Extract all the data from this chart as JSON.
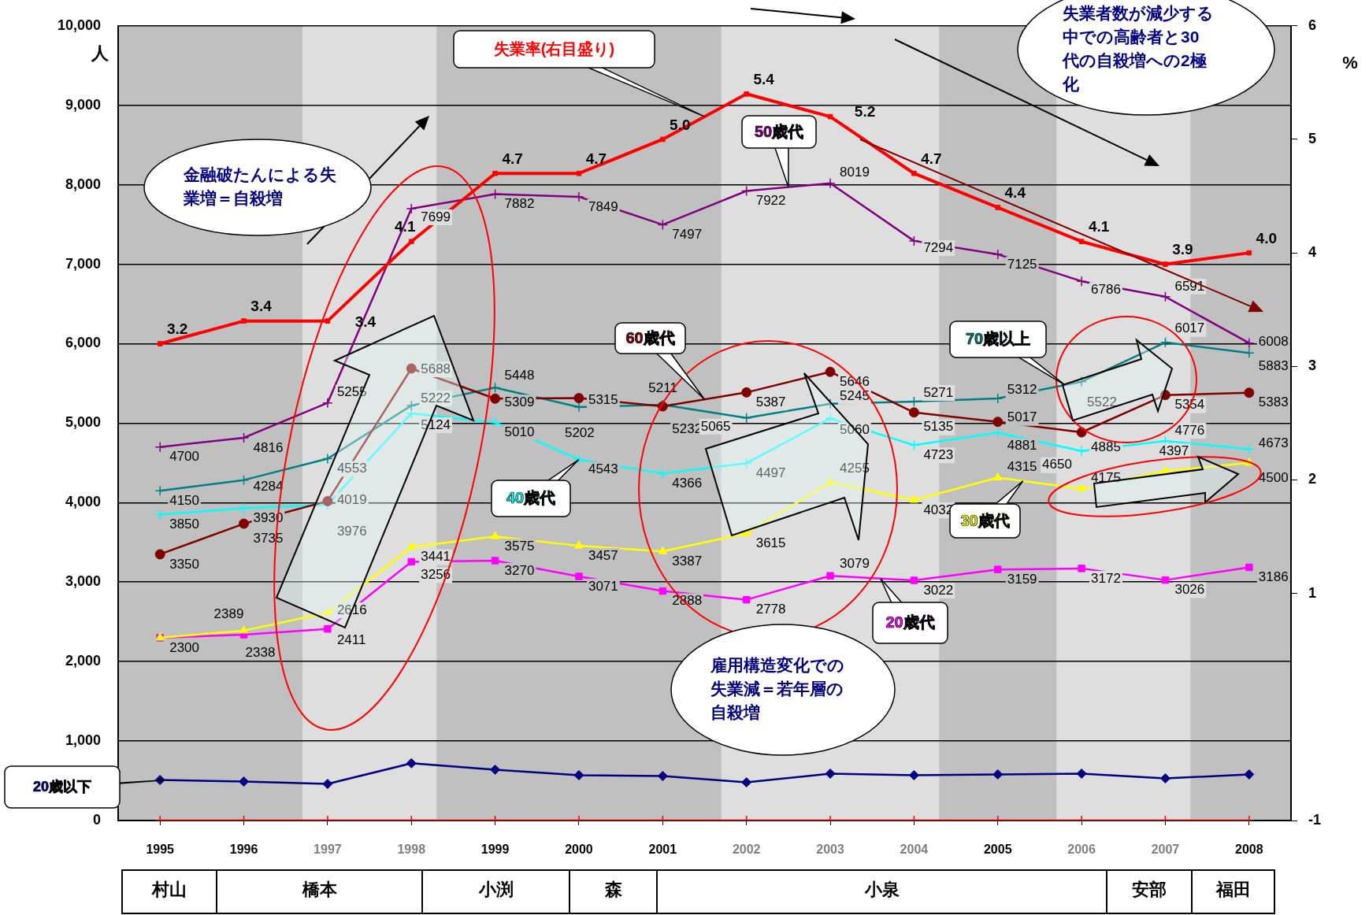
{
  "chart_data": {
    "type": "line",
    "ylabel": "人",
    "y2label": "%",
    "categories": [
      "1995",
      "1996",
      "1997",
      "1998",
      "1999",
      "2000",
      "2001",
      "2002",
      "2003",
      "2004",
      "2005",
      "2006",
      "2007",
      "2008"
    ],
    "series": [
      {
        "name": "失業率(右目盛り)",
        "axis": "y2",
        "color": "#ff0000",
        "marker": "square",
        "values": [
          3.2,
          3.4,
          3.4,
          4.1,
          4.7,
          4.7,
          5.0,
          5.4,
          5.2,
          4.7,
          4.4,
          4.1,
          3.9,
          4.0
        ],
        "value_labels": [
          "3.2",
          "3.4",
          "3.4",
          "4.1",
          "4.7",
          "4.7",
          "5.0",
          "5.4",
          "5.2",
          "4.7",
          "4.4",
          "4.1",
          "3.9",
          "4.0"
        ]
      },
      {
        "name": "50歳代",
        "color": "#800080",
        "marker": "cross",
        "values": [
          4700,
          4816,
          5255,
          7699,
          7882,
          7849,
          7497,
          7922,
          8019,
          7294,
          7125,
          6786,
          6591,
          6008
        ],
        "value_labels": [
          "4700",
          "4816",
          "5255",
          "7699",
          "7882",
          "7849",
          "7497",
          "7922",
          "8019",
          "7294",
          "7125",
          "6786",
          "6591",
          "6008"
        ]
      },
      {
        "name": "60歳代",
        "color": "#800000",
        "marker": "circle",
        "values": [
          3350,
          3735,
          4019,
          5688,
          5309,
          5315,
          5211,
          5387,
          5646,
          5135,
          5017,
          4885,
          5354,
          5383
        ],
        "value_labels": [
          "3350",
          "3735",
          "4019",
          "5688",
          "5309",
          "5315",
          "5211",
          "5387",
          "5646",
          "5135",
          "5017",
          "4885",
          "5354",
          "5383"
        ]
      },
      {
        "name": "70歳以上",
        "color": "#008080",
        "marker": "cross",
        "values": [
          4150,
          4284,
          4553,
          5222,
          5448,
          5202,
          5232,
          5065,
          5245,
          5271,
          5312,
          5522,
          6017,
          5883
        ],
        "value_labels": [
          "4150",
          "4284",
          "4553",
          "5222",
          "5448",
          "5202",
          "5232",
          "5065",
          "5245",
          "5271",
          "5312",
          "5522",
          "6017",
          "5883"
        ]
      },
      {
        "name": "40歳代",
        "color": "#00ffff",
        "marker": "cross",
        "values": [
          3850,
          3930,
          3976,
          5124,
          5010,
          4543,
          4366,
          4497,
          5060,
          4723,
          4881,
          4650,
          4776,
          4673
        ],
        "value_labels": [
          "3850",
          "3930",
          "3976",
          "5124",
          "5010",
          "4543",
          "4366",
          "4497",
          "5060",
          "4723",
          "4881",
          "4650",
          "4776",
          "4673"
        ]
      },
      {
        "name": "30歳代",
        "color": "#ffff00",
        "marker": "triangle",
        "values": [
          2300,
          2389,
          2616,
          3441,
          3575,
          3457,
          3387,
          3615,
          4255,
          4032,
          4315,
          4175,
          4397,
          4500
        ],
        "value_labels": [
          null,
          "2389",
          "2616",
          "3441",
          "3575",
          "3457",
          "3387",
          "3615",
          "4255",
          "4032",
          "4315",
          "4175",
          "4397",
          "4500"
        ]
      },
      {
        "name": "20歳代",
        "color": "#ff00ff",
        "marker": "square",
        "values": [
          2300,
          2338,
          2411,
          3256,
          3270,
          3071,
          2888,
          2778,
          3079,
          3022,
          3159,
          3172,
          3026,
          3186
        ],
        "value_labels": [
          "2300",
          "2338",
          "2411",
          "3256",
          "3270",
          "3071",
          "2888",
          "2778",
          "3079",
          "3022",
          "3159",
          "3172",
          "3026",
          "3186"
        ]
      },
      {
        "name": "20歳以下",
        "color": "#000080",
        "marker": "diamond",
        "values": [
          510,
          490,
          460,
          720,
          640,
          570,
          560,
          480,
          590,
          570,
          580,
          590,
          530,
          580
        ]
      },
      {
        "color": "#ff0000",
        "marker": "cross",
        "values": [
          0,
          0,
          0,
          0,
          0,
          0,
          0,
          0,
          0,
          0,
          0,
          0,
          0,
          0
        ]
      }
    ],
    "ylim": [
      0,
      10000
    ],
    "yticks": [
      0,
      {
        "value": 1000,
        "label": "1,000"
      },
      {
        "value": 2000,
        "label": "2,000"
      },
      {
        "value": 3000,
        "label": "3,000"
      },
      {
        "value": 4000,
        "label": "4,000"
      },
      {
        "value": 5000,
        "label": "5,000"
      },
      {
        "value": 6000,
        "label": "6,000"
      },
      {
        "value": 7000,
        "label": "7,000"
      },
      {
        "value": 8000,
        "label": "8,000"
      },
      {
        "value": 9000,
        "label": "9,000"
      },
      {
        "value": 10000,
        "label": "10,000"
      }
    ],
    "y2lim": [
      -1,
      6
    ],
    "y2ticks": [
      -1,
      1,
      2,
      3,
      4,
      5,
      6
    ],
    "bands": [
      {
        "axis": "x",
        "from": "1997",
        "to": "1998",
        "color": "#dedede"
      },
      {
        "axis": "x",
        "from": "2002",
        "to": "2004",
        "color": "#dedede"
      },
      {
        "axis": "x",
        "from": "2006",
        "to": "2007",
        "color": "#dedede"
      }
    ],
    "grid": "y",
    "legend": false,
    "line_style": "solid",
    "annotations": [
      "金融破たんによる失業増＝自殺増",
      "雇用構造変化での失業減＝若年層の自殺増",
      "失業者数が減少する中での高齢者と30代の自殺増への2極化",
      "村山",
      "橋本",
      "小渕",
      "森",
      "小泉",
      "安部",
      "福田"
    ]
  }
}
